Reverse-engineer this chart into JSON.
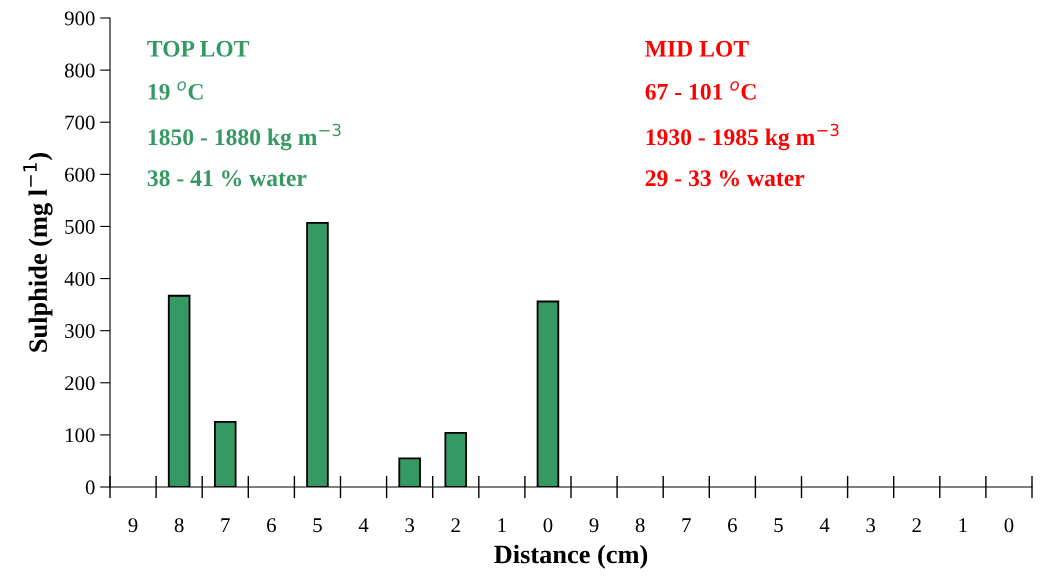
{
  "chart_data": {
    "type": "bar",
    "xlabel": "Distance (cm)",
    "ylabel": "Sulphide (mg l$^{−1}$)",
    "categories": [
      "9",
      "8",
      "7",
      "6",
      "5",
      "4",
      "3",
      "2",
      "1",
      "0",
      "9",
      "8",
      "7",
      "6",
      "5",
      "4",
      "3",
      "2",
      "1",
      "0"
    ],
    "values": [
      null,
      367,
      125,
      null,
      507,
      null,
      55,
      104,
      null,
      356,
      null,
      null,
      null,
      null,
      null,
      null,
      null,
      null,
      null,
      null
    ],
    "color": "#359964",
    "ylim": [
      0,
      900
    ],
    "yticks": [
      0,
      100,
      200,
      300,
      400,
      500,
      600,
      700,
      800,
      900
    ],
    "grid": false,
    "legend": false,
    "annotations": [
      "TOP LOT",
      "19 $^{o}$C",
      "1850 - 1880 kg m$^{−3}$",
      "38 - 41 % water",
      "MID LOT",
      "67 - 101 $^{o}$C",
      "1930 - 1985 kg m$^{−3}$",
      "29 - 33 % water"
    ]
  }
}
